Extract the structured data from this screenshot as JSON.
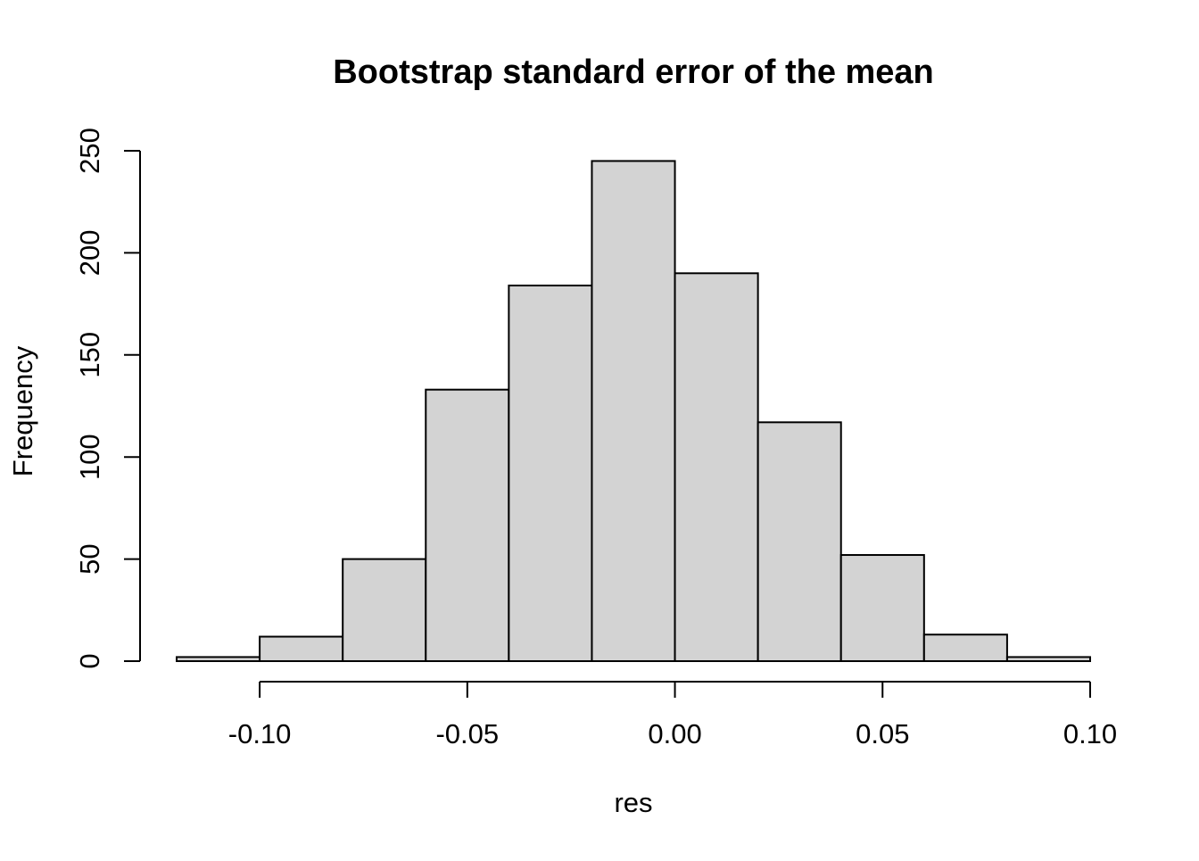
{
  "chart_data": {
    "type": "bar",
    "subtype": "histogram",
    "title": "Bootstrap standard error of the mean",
    "xlabel": "res",
    "ylabel": "Frequency",
    "bin_edges": [
      -0.12,
      -0.1,
      -0.08,
      -0.06,
      -0.04,
      -0.02,
      0.0,
      0.02,
      0.04,
      0.06,
      0.08,
      0.1
    ],
    "values": [
      2,
      12,
      50,
      133,
      184,
      245,
      190,
      117,
      52,
      13,
      2
    ],
    "xlim": [
      -0.12,
      0.1
    ],
    "ylim": [
      0,
      250
    ],
    "x_ticks": [
      -0.1,
      -0.05,
      0.0,
      0.05,
      0.1
    ],
    "x_tick_labels": [
      "-0.10",
      "-0.05",
      "0.00",
      "0.05",
      "0.10"
    ],
    "y_ticks": [
      0,
      50,
      100,
      150,
      200,
      250
    ],
    "y_tick_labels": [
      "0",
      "50",
      "100",
      "150",
      "200",
      "250"
    ],
    "bar_color": "#d3d3d3",
    "edge_color": "#000000",
    "grid": false,
    "legend": "none"
  }
}
